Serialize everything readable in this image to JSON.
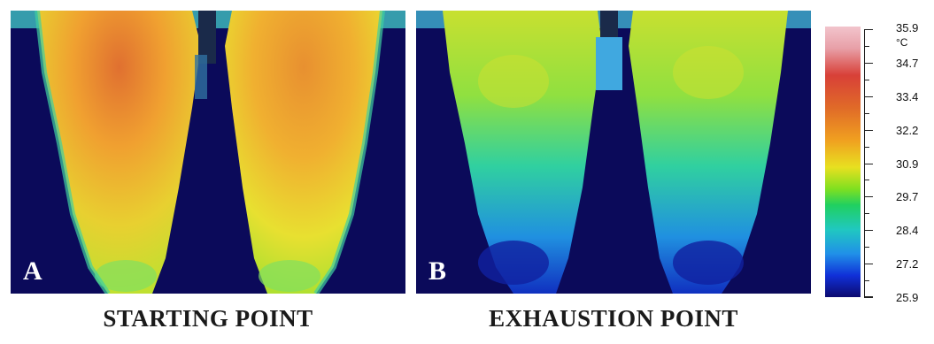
{
  "panels": [
    {
      "letter": "A",
      "caption": "STARTING POINT"
    },
    {
      "letter": "B",
      "caption": "EXHAUSTION POINT"
    }
  ],
  "scale": {
    "unit": "°C",
    "labels": [
      "35.9",
      "34.7",
      "33.4",
      "32.2",
      "30.9",
      "29.7",
      "28.4",
      "27.2",
      "25.9"
    ]
  },
  "colors": {
    "background": "#0b0a5a",
    "hot": "#d84038",
    "warm": "#f0a020",
    "mid": "#e8e020",
    "cool": "#20c8c0",
    "cold": "#1030d8"
  }
}
